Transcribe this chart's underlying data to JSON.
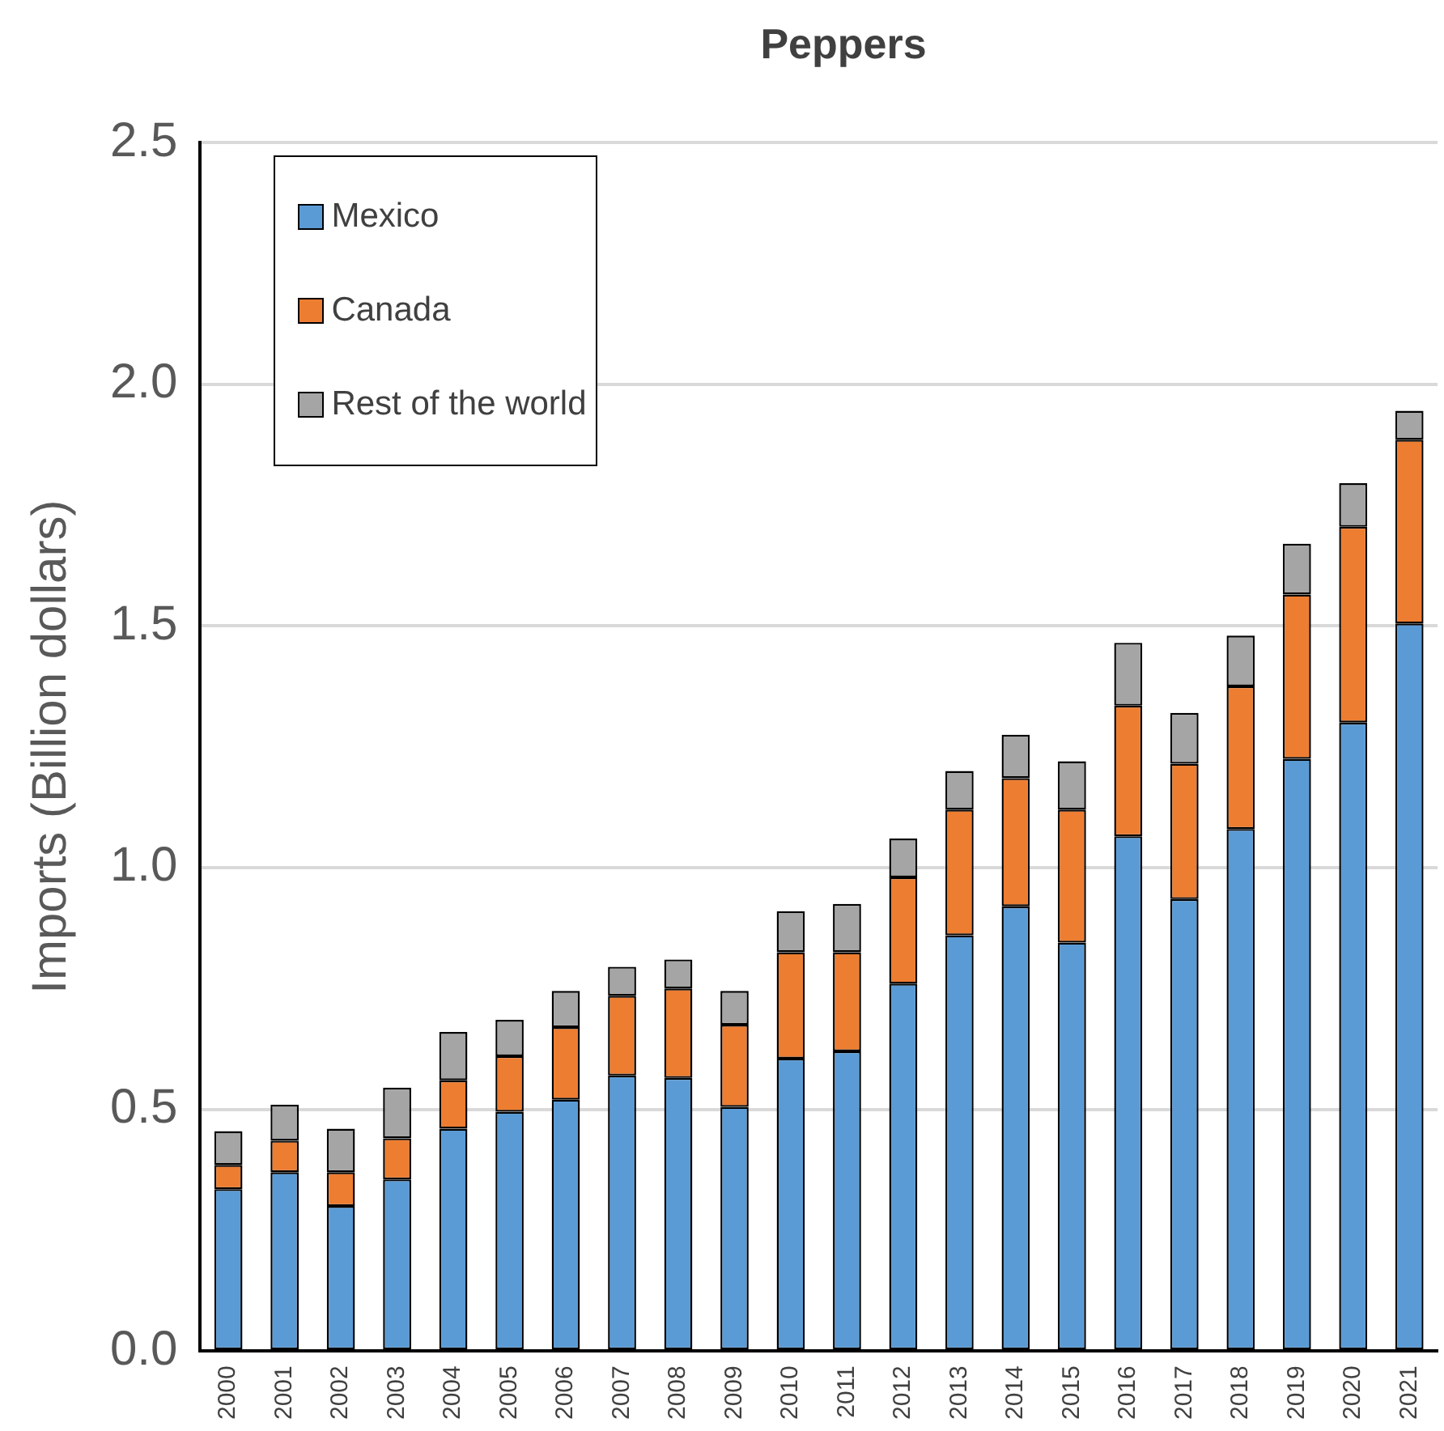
{
  "chart_data": {
    "type": "bar",
    "title": "Peppers",
    "ylabel": "Imports (Billion dollars)",
    "categories": [
      "2000",
      "2001",
      "2002",
      "2003",
      "2004",
      "2005",
      "2006",
      "2007",
      "2008",
      "2009",
      "2010",
      "2011",
      "2012",
      "2013",
      "2014",
      "2015",
      "2016",
      "2017",
      "2018",
      "2019",
      "2020",
      "2021"
    ],
    "series": [
      {
        "name": "Mexico",
        "color": "#5b9bd5",
        "values": [
          0.335,
          0.37,
          0.3,
          0.355,
          0.46,
          0.495,
          0.52,
          0.57,
          0.565,
          0.505,
          0.605,
          0.62,
          0.76,
          0.86,
          0.92,
          0.845,
          1.065,
          0.935,
          1.08,
          1.225,
          1.3,
          1.505
        ]
      },
      {
        "name": "Canada",
        "color": "#ed7d31",
        "values": [
          0.05,
          0.065,
          0.07,
          0.085,
          0.1,
          0.115,
          0.15,
          0.165,
          0.185,
          0.17,
          0.22,
          0.205,
          0.22,
          0.26,
          0.265,
          0.275,
          0.27,
          0.28,
          0.295,
          0.34,
          0.405,
          0.38
        ]
      },
      {
        "name": "Rest of the world",
        "color": "#a5a5a5",
        "values": [
          0.07,
          0.075,
          0.09,
          0.105,
          0.1,
          0.075,
          0.075,
          0.06,
          0.06,
          0.07,
          0.085,
          0.1,
          0.08,
          0.08,
          0.09,
          0.1,
          0.13,
          0.105,
          0.105,
          0.105,
          0.09,
          0.06
        ]
      }
    ],
    "stacked": true,
    "ylim": [
      0,
      2.5
    ],
    "yticks": [
      {
        "value": 0,
        "label": "0.0"
      },
      {
        "value": 0.5,
        "label": "0.5"
      },
      {
        "value": 1,
        "label": "1.0"
      },
      {
        "value": 1.5,
        "label": "1.5"
      },
      {
        "value": 2,
        "label": "2.0"
      },
      {
        "value": 2.5,
        "label": "2.5"
      }
    ],
    "grid": "y",
    "legend": "top left"
  }
}
